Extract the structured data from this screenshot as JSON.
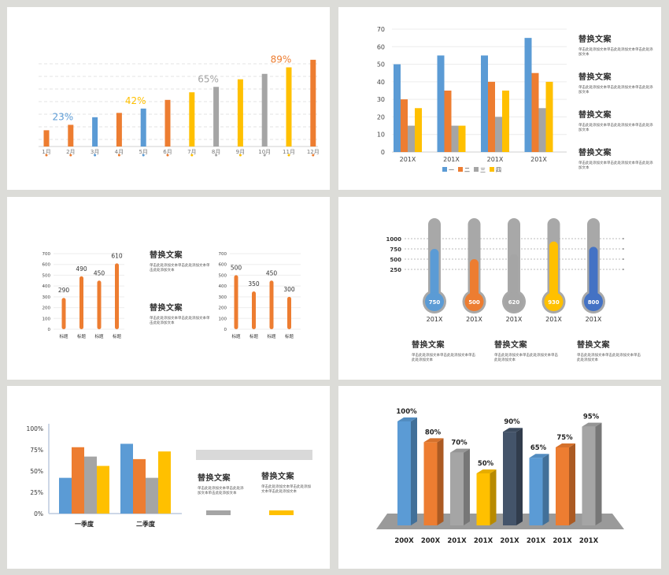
{
  "colors": {
    "blue": "#5b9bd5",
    "orange": "#ed7d31",
    "gray": "#a5a5a5",
    "yellow": "#ffc000",
    "navy": "#44546a",
    "royal": "#4472c4"
  },
  "placeholder": {
    "title": "替换文案",
    "body": "单击此处添加文本单击此处添加文本单击此处添加文本"
  },
  "chart_data": [
    {
      "type": "bar",
      "categories": [
        "1月",
        "2月",
        "3月",
        "4月",
        "5月",
        "6月",
        "7月",
        "8月",
        "9月",
        "10月",
        "11月",
        "12月"
      ],
      "values": [
        15,
        20,
        27,
        31,
        35,
        43,
        50,
        55,
        62,
        67,
        73,
        80
      ],
      "colors": [
        "orange",
        "orange",
        "blue",
        "orange",
        "blue",
        "orange",
        "yellow",
        "gray",
        "yellow",
        "gray",
        "yellow",
        "orange"
      ],
      "annotations": [
        {
          "index": 1,
          "label": "23%",
          "color": "blue"
        },
        {
          "index": 4,
          "label": "42%",
          "color": "yellow"
        },
        {
          "index": 7,
          "label": "65%",
          "color": "gray"
        },
        {
          "index": 10,
          "label": "89%",
          "color": "orange"
        }
      ],
      "ylim": [
        0,
        85
      ],
      "grid": true
    },
    {
      "type": "bar",
      "categories": [
        "201X",
        "201X",
        "201X",
        "201X"
      ],
      "series": [
        {
          "name": "一",
          "values": [
            50,
            55,
            55,
            65
          ]
        },
        {
          "name": "二",
          "values": [
            30,
            35,
            40,
            45
          ]
        },
        {
          "name": "三",
          "values": [
            15,
            15,
            20,
            25
          ]
        },
        {
          "name": "四",
          "values": [
            25,
            15,
            35,
            40
          ]
        }
      ],
      "yticks": [
        "0",
        "10",
        "20",
        "30",
        "40",
        "50",
        "60",
        "70"
      ],
      "ylim": [
        0,
        70
      ],
      "legend": "bottom"
    },
    {
      "type": "bar",
      "categories": [
        "标题",
        "标题",
        "标题",
        "标题"
      ],
      "values": [
        290,
        490,
        450,
        610
      ],
      "yticks": [
        "0",
        "100",
        "200",
        "300",
        "400",
        "500",
        "600",
        "700"
      ],
      "ylim": [
        0,
        700
      ]
    },
    {
      "type": "bar",
      "categories": [
        "标题",
        "标题",
        "标题",
        "标题"
      ],
      "values": [
        500,
        350,
        450,
        300
      ],
      "yticks": [
        "0",
        "100",
        "200",
        "300",
        "400",
        "500",
        "600",
        "700"
      ],
      "ylim": [
        0,
        700
      ]
    },
    {
      "type": "bar",
      "categories": [
        "201X",
        "201X",
        "201X",
        "201X",
        "201X"
      ],
      "values": [
        750,
        500,
        620,
        930,
        800
      ],
      "colors": [
        "blue",
        "orange",
        "gray",
        "yellow",
        "royal"
      ],
      "yticks": [
        "250",
        "500",
        "750",
        "1000"
      ],
      "ylim": [
        0,
        1000
      ]
    },
    {
      "type": "bar",
      "categories": [
        "一季度",
        "二季度"
      ],
      "series": [
        {
          "values": [
            0.42,
            0.82
          ]
        },
        {
          "values": [
            0.78,
            0.64
          ]
        },
        {
          "values": [
            0.67,
            0.42
          ]
        },
        {
          "values": [
            0.56,
            0.73
          ]
        }
      ],
      "yticks": [
        "0%",
        "25%",
        "50%",
        "75%",
        "100%"
      ],
      "ylim": [
        0,
        1
      ]
    },
    {
      "type": "bar",
      "categories": [
        "200X",
        "200X",
        "201X",
        "201X",
        "201X",
        "201X",
        "201X",
        "201X"
      ],
      "values": [
        100,
        80,
        70,
        50,
        90,
        65,
        75,
        95
      ],
      "labels": [
        "100%",
        "80%",
        "70%",
        "50%",
        "90%",
        "65%",
        "75%",
        "95%"
      ],
      "colors": [
        "blue",
        "orange",
        "gray",
        "yellow",
        "navy",
        "blue",
        "orange",
        "gray"
      ],
      "ylim": [
        0,
        100
      ]
    }
  ]
}
